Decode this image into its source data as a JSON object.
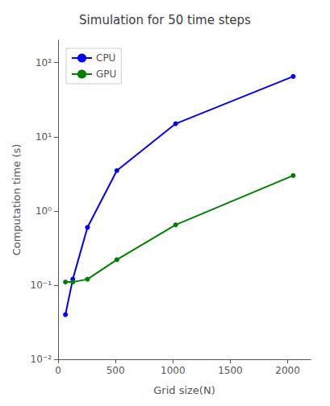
{
  "chart_data": {
    "type": "line",
    "title": "Simulation for 50 time steps",
    "xlabel": "Grid size(N)",
    "ylabel": "Computation time (s)",
    "x": [
      64,
      128,
      256,
      512,
      1024,
      2048
    ],
    "series": [
      {
        "name": "CPU",
        "color": "#0000FF",
        "values": [
          0.04,
          0.12,
          0.6,
          3.5,
          15.0,
          65.0
        ]
      },
      {
        "name": "GPU",
        "color": "#008000",
        "values": [
          0.11,
          0.11,
          0.12,
          0.22,
          0.65,
          3.0
        ]
      }
    ],
    "xlim": [
      0,
      2200
    ],
    "xticks": [
      0,
      500,
      1000,
      1500,
      2000
    ],
    "ylim": [
      0.01,
      200
    ],
    "yticks": [
      {
        "value": 0.01,
        "label": "10⁻²"
      },
      {
        "value": 0.1,
        "label": "10⁻¹"
      },
      {
        "value": 1,
        "label": "10⁰"
      },
      {
        "value": 10,
        "label": "10¹"
      },
      {
        "value": 100,
        "label": "10²"
      }
    ],
    "log": "y",
    "grid": false,
    "legend": "upper left",
    "marker": "circle"
  }
}
